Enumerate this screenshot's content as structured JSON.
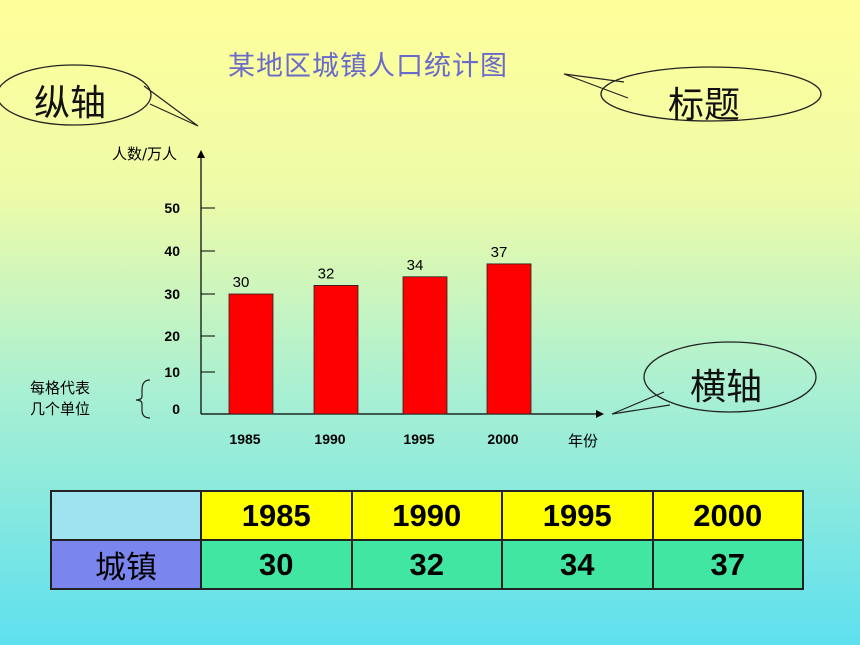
{
  "title": "某地区城镇人口统计图",
  "callouts": {
    "y_axis": "纵轴",
    "title": "标题",
    "x_axis": "横轴"
  },
  "unit_note": [
    "每格代表",
    "几个单位"
  ],
  "chart_data": {
    "type": "bar",
    "title": "某地区城镇人口统计图",
    "ylabel": "人数/万人",
    "xlabel": "年份",
    "categories": [
      "1985",
      "1990",
      "1995",
      "2000"
    ],
    "values": [
      30,
      32,
      34,
      37
    ],
    "yticks": [
      0,
      10,
      20,
      30,
      40,
      50
    ],
    "ylim": [
      0,
      60
    ],
    "bar_color": "#ff0000",
    "grid": false
  },
  "table": {
    "header_years": [
      "1985",
      "1990",
      "1995",
      "2000"
    ],
    "row_label": "城镇",
    "row_values": [
      "30",
      "32",
      "34",
      "37"
    ]
  }
}
